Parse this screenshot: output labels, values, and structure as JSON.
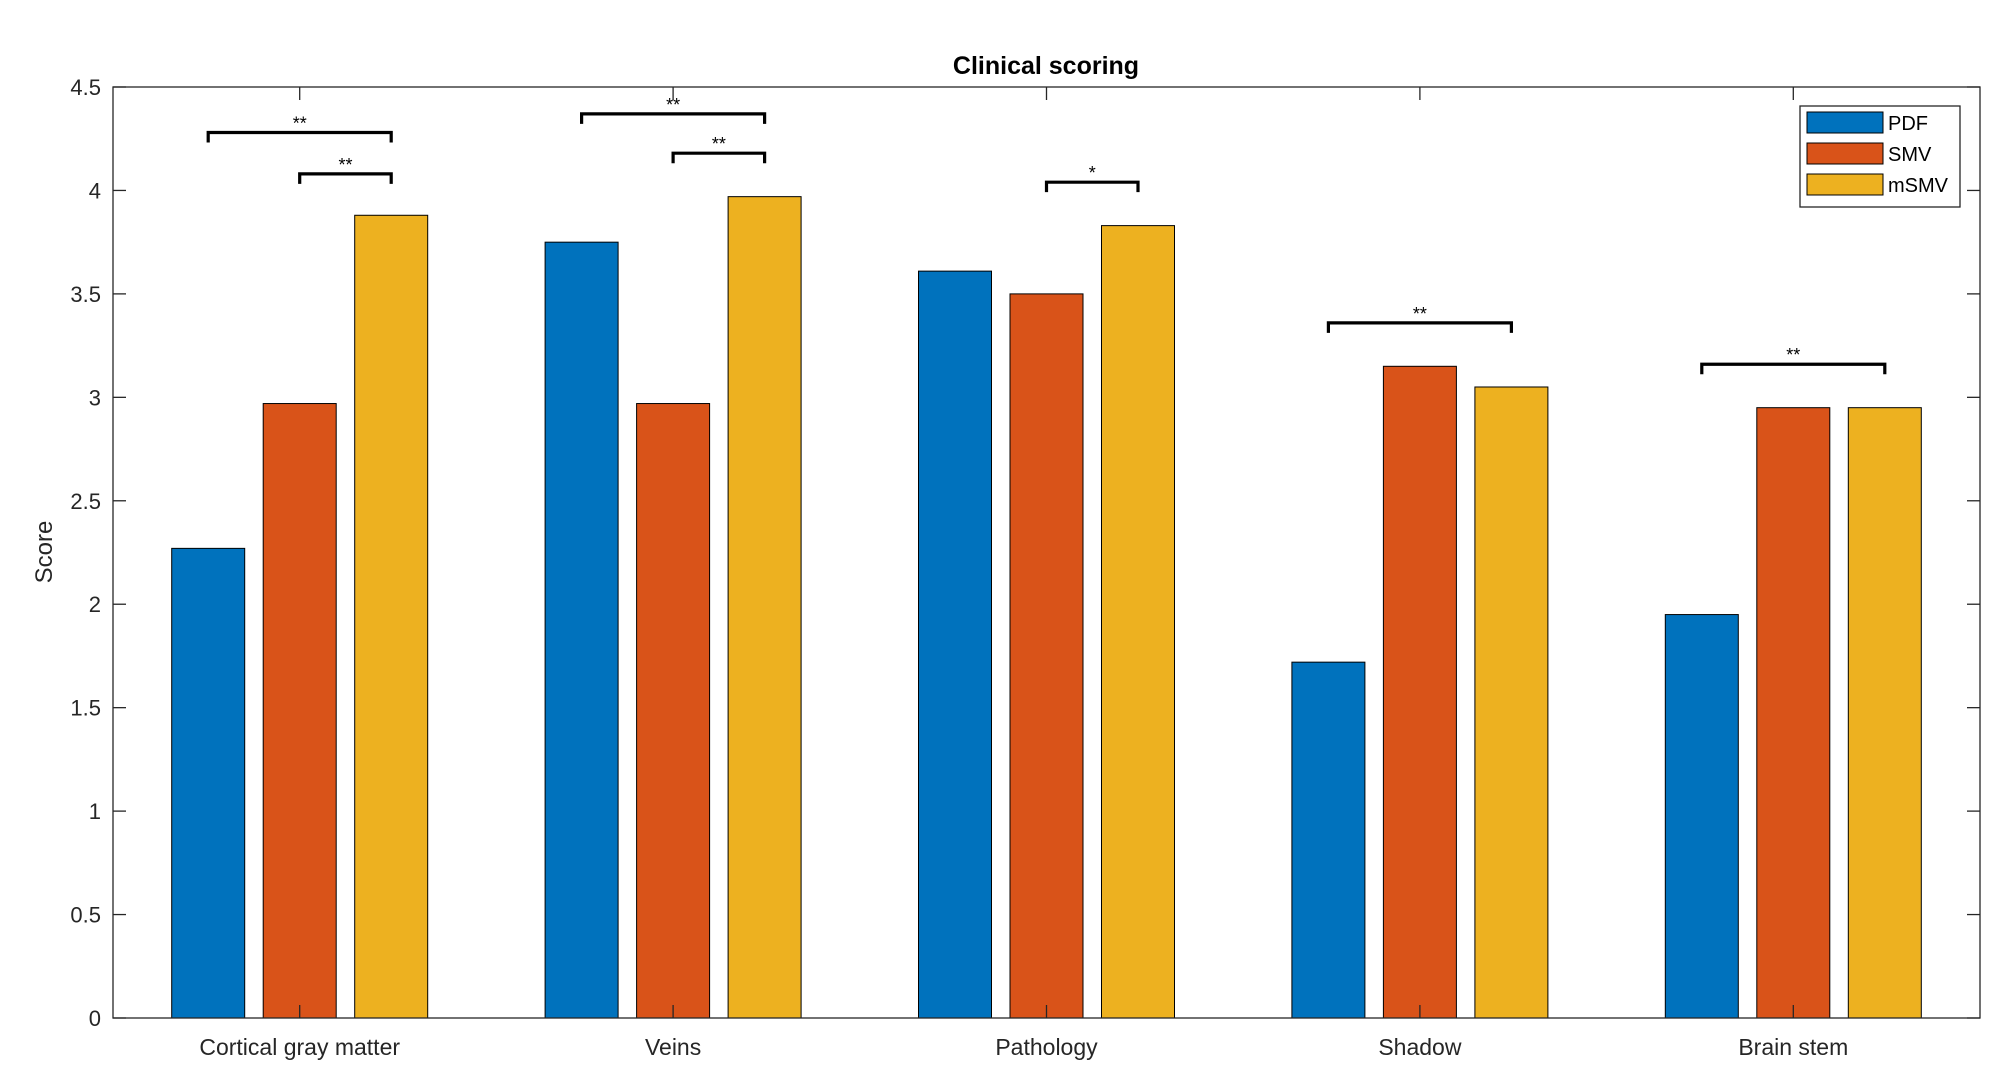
{
  "chart_data": {
    "type": "bar",
    "title": "Clinical scoring",
    "xlabel": "",
    "ylabel": "Score",
    "ylim": [
      0,
      4.5
    ],
    "yticks": [
      "0",
      "0.5",
      "1",
      "1.5",
      "2",
      "2.5",
      "3",
      "3.5",
      "4",
      "4.5"
    ],
    "categories": [
      "Cortical gray matter",
      "Veins",
      "Pathology",
      "Shadow",
      "Brain stem"
    ],
    "series": [
      {
        "name": "PDF",
        "color": "#0072BD",
        "values": [
          2.27,
          3.75,
          3.61,
          1.72,
          1.95
        ]
      },
      {
        "name": "SMV",
        "color": "#D95319",
        "values": [
          2.97,
          2.97,
          3.5,
          3.15,
          2.95
        ]
      },
      {
        "name": "mSMV",
        "color": "#EDB120",
        "values": [
          3.88,
          3.97,
          3.83,
          3.05,
          2.95
        ]
      }
    ],
    "significance": [
      {
        "category": 0,
        "from": "PDF",
        "to": "mSMV",
        "y": 4.28,
        "label": "**"
      },
      {
        "category": 0,
        "from": "SMV",
        "to": "mSMV",
        "y": 4.08,
        "label": "**"
      },
      {
        "category": 1,
        "from": "PDF",
        "to": "mSMV",
        "y": 4.37,
        "label": "**"
      },
      {
        "category": 1,
        "from": "SMV",
        "to": "mSMV",
        "y": 4.18,
        "label": "**"
      },
      {
        "category": 2,
        "from": "SMV",
        "to": "mSMV",
        "y": 4.04,
        "label": "*"
      },
      {
        "category": 3,
        "from": "PDF",
        "to": "mSMV",
        "y": 3.36,
        "label": "**"
      },
      {
        "category": 4,
        "from": "PDF",
        "to": "mSMV",
        "y": 3.16,
        "label": "**"
      }
    ],
    "legend_position": "top-right",
    "grid": false
  }
}
